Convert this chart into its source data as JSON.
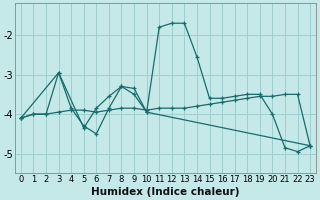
{
  "xlabel": "Humidex (Indice chaleur)",
  "bg_color": "#c5e8e8",
  "line_color": "#1a6b6b",
  "grid_color": "#9ecece",
  "xlim": [
    -0.5,
    23.5
  ],
  "ylim": [
    -5.5,
    -1.2
  ],
  "yticks": [
    -5,
    -4,
    -3,
    -2
  ],
  "xticks": [
    0,
    1,
    2,
    3,
    4,
    5,
    6,
    7,
    8,
    9,
    10,
    11,
    12,
    13,
    14,
    15,
    16,
    17,
    18,
    19,
    20,
    21,
    22,
    23
  ],
  "series1": [
    [
      0,
      -4.1
    ],
    [
      1,
      -4.0
    ],
    [
      2,
      -4.0
    ],
    [
      3,
      -2.95
    ],
    [
      4,
      -3.85
    ],
    [
      5,
      -4.3
    ],
    [
      6,
      -4.5
    ],
    [
      7,
      -3.85
    ],
    [
      8,
      -3.3
    ],
    [
      9,
      -3.35
    ],
    [
      10,
      -3.95
    ],
    [
      11,
      -1.8
    ],
    [
      12,
      -1.7
    ],
    [
      13,
      -1.7
    ],
    [
      14,
      -2.55
    ],
    [
      15,
      -3.6
    ],
    [
      16,
      -3.6
    ],
    [
      17,
      -3.55
    ],
    [
      18,
      -3.5
    ],
    [
      19,
      -3.5
    ],
    [
      20,
      -4.0
    ],
    [
      21,
      -4.85
    ],
    [
      22,
      -4.95
    ],
    [
      23,
      -4.8
    ]
  ],
  "series2": [
    [
      0,
      -4.1
    ],
    [
      3,
      -2.95
    ],
    [
      5,
      -4.35
    ],
    [
      6,
      -3.85
    ],
    [
      7,
      -3.55
    ],
    [
      8,
      -3.3
    ],
    [
      9,
      -3.5
    ],
    [
      10,
      -3.95
    ],
    [
      23,
      -4.8
    ]
  ],
  "series3": [
    [
      0,
      -4.1
    ],
    [
      1,
      -4.0
    ],
    [
      2,
      -4.0
    ],
    [
      3,
      -3.95
    ],
    [
      4,
      -3.9
    ],
    [
      5,
      -3.9
    ],
    [
      6,
      -3.95
    ],
    [
      7,
      -3.9
    ],
    [
      8,
      -3.85
    ],
    [
      9,
      -3.85
    ],
    [
      10,
      -3.9
    ],
    [
      11,
      -3.85
    ],
    [
      12,
      -3.85
    ],
    [
      13,
      -3.85
    ],
    [
      14,
      -3.8
    ],
    [
      15,
      -3.75
    ],
    [
      16,
      -3.7
    ],
    [
      17,
      -3.65
    ],
    [
      18,
      -3.6
    ],
    [
      19,
      -3.55
    ],
    [
      20,
      -3.55
    ],
    [
      21,
      -3.5
    ],
    [
      22,
      -3.5
    ],
    [
      23,
      -4.8
    ]
  ]
}
